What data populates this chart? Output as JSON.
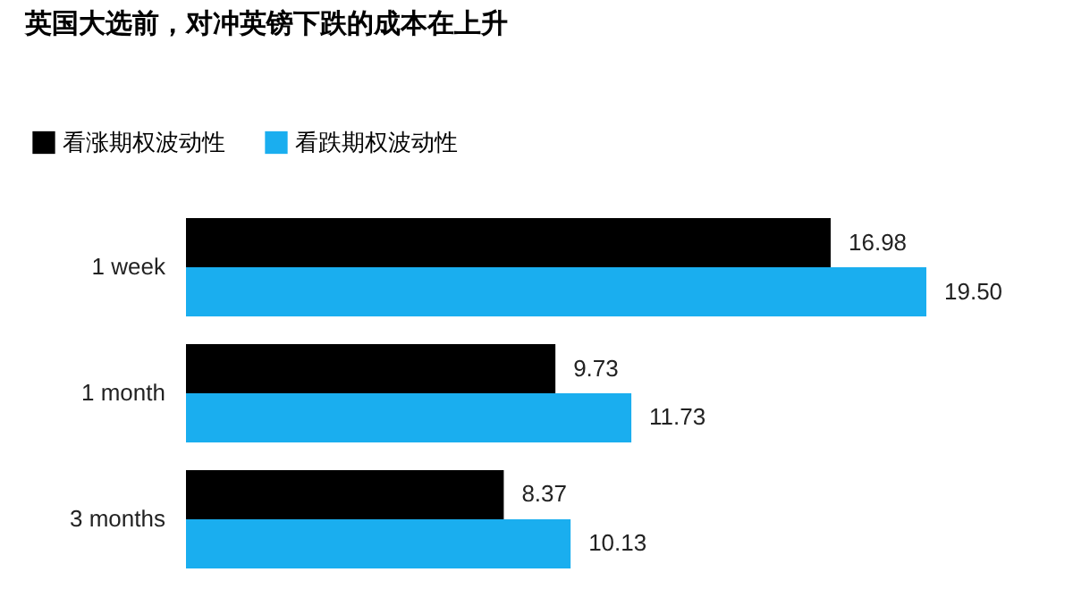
{
  "chart_data": {
    "type": "bar",
    "orientation": "horizontal",
    "title": "英国大选前，对冲英镑下跌的成本在上升",
    "categories": [
      "1 week",
      "1 month",
      "3 months"
    ],
    "series": [
      {
        "name": "看涨期权波动性",
        "color": "#000000",
        "values": [
          16.98,
          9.73,
          8.37
        ],
        "value_labels": [
          "16.98",
          "9.73",
          "8.37"
        ]
      },
      {
        "name": "看跌期权波动性",
        "color": "#1aaeef",
        "values": [
          19.5,
          11.73,
          10.13
        ],
        "value_labels": [
          "19.50",
          "11.73",
          "10.13"
        ]
      }
    ],
    "legend": "top left",
    "tick_labels": "y"
  }
}
